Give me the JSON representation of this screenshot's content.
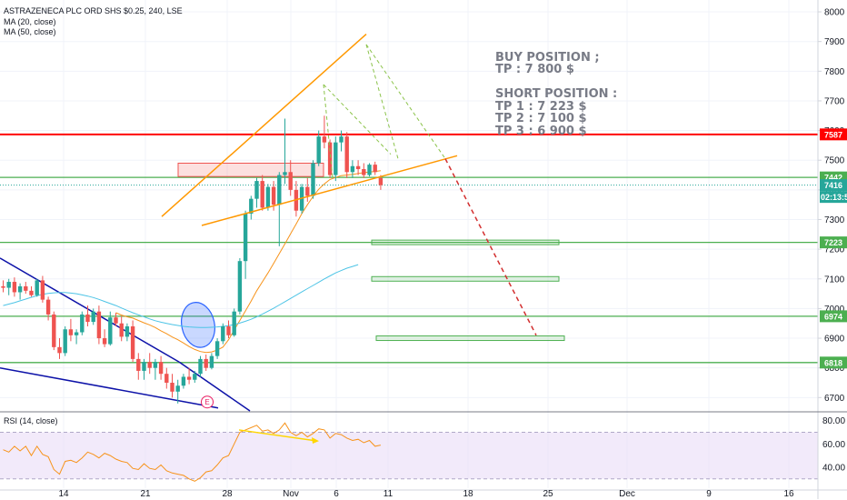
{
  "header": {
    "symbol": "ASTRAZENECA PLC ORD SHS $0.25, 240, LSE",
    "ma20": "MA (20, close)",
    "ma50": "MA (50, close)",
    "rsi": "RSI (14, close)"
  },
  "annotation": {
    "buy_title": "BUY POSITION ;",
    "buy_tp": "TP : 7 800 $",
    "short_title": "SHORT POSITION :",
    "tp1": "TP 1 : 7 223 $",
    "tp2": "TP 2 : 7 100 $",
    "tp3": "TP 3 : 6 900 $"
  },
  "earnings_marker": "E",
  "colors": {
    "up": "#26a69a",
    "down": "#ef5350",
    "resistance": "#ff0000",
    "support": "#4caf50",
    "wedge": "#ff9800",
    "trendline": "#0d12a8",
    "ma20": "#f7931a",
    "ma50": "#4dc4e6",
    "rsi": "#f7931a",
    "rsi_band": "#e9dcf7",
    "price_line": "#4caf50",
    "projection": "#d32f2f"
  },
  "chart_data": [
    {
      "type": "candlestick",
      "title": "ASTRAZENECA PLC ORD SHS $0.25, 240, LSE",
      "price_axis": {
        "ylim": [
          6655,
          8040
        ],
        "ticks": [
          6700,
          6800,
          6900,
          7000,
          7100,
          7200,
          7300,
          7400,
          7500,
          7600,
          7700,
          7800,
          7900,
          8000
        ]
      },
      "time_axis": {
        "labels": [
          "14",
          "21",
          "28",
          "Nov",
          "6",
          "11",
          "18",
          "25",
          "Dec",
          "9",
          "16"
        ]
      },
      "candles": [
        {
          "o": 7075,
          "h": 7095,
          "l": 7055,
          "c": 7070
        },
        {
          "o": 7070,
          "h": 7100,
          "l": 7045,
          "c": 7090
        },
        {
          "o": 7090,
          "h": 7105,
          "l": 7040,
          "c": 7055
        },
        {
          "o": 7055,
          "h": 7085,
          "l": 7030,
          "c": 7075
        },
        {
          "o": 7075,
          "h": 7090,
          "l": 7050,
          "c": 7060
        },
        {
          "o": 7060,
          "h": 7075,
          "l": 7040,
          "c": 7045
        },
        {
          "o": 7045,
          "h": 7100,
          "l": 7040,
          "c": 7095
        },
        {
          "o": 7095,
          "h": 7110,
          "l": 7020,
          "c": 7030
        },
        {
          "o": 7030,
          "h": 7040,
          "l": 6960,
          "c": 6980
        },
        {
          "o": 6980,
          "h": 6990,
          "l": 6860,
          "c": 6870
        },
        {
          "o": 6870,
          "h": 6900,
          "l": 6830,
          "c": 6850
        },
        {
          "o": 6850,
          "h": 6940,
          "l": 6840,
          "c": 6930
        },
        {
          "o": 6930,
          "h": 6965,
          "l": 6890,
          "c": 6910
        },
        {
          "o": 6910,
          "h": 6930,
          "l": 6880,
          "c": 6920
        },
        {
          "o": 6920,
          "h": 6990,
          "l": 6910,
          "c": 6980
        },
        {
          "o": 6980,
          "h": 7010,
          "l": 6940,
          "c": 6955
        },
        {
          "o": 6955,
          "h": 7000,
          "l": 6945,
          "c": 6990
        },
        {
          "o": 6990,
          "h": 7010,
          "l": 6880,
          "c": 6900
        },
        {
          "o": 6900,
          "h": 6930,
          "l": 6870,
          "c": 6880
        },
        {
          "o": 6880,
          "h": 6990,
          "l": 6875,
          "c": 6970
        },
        {
          "o": 6970,
          "h": 6985,
          "l": 6940,
          "c": 6950
        },
        {
          "o": 6950,
          "h": 6975,
          "l": 6890,
          "c": 6905
        },
        {
          "o": 6905,
          "h": 6950,
          "l": 6890,
          "c": 6940
        },
        {
          "o": 6940,
          "h": 6960,
          "l": 6820,
          "c": 6830
        },
        {
          "o": 6830,
          "h": 6850,
          "l": 6760,
          "c": 6790
        },
        {
          "o": 6790,
          "h": 6830,
          "l": 6760,
          "c": 6820
        },
        {
          "o": 6820,
          "h": 6850,
          "l": 6780,
          "c": 6800
        },
        {
          "o": 6800,
          "h": 6830,
          "l": 6760,
          "c": 6820
        },
        {
          "o": 6820,
          "h": 6840,
          "l": 6760,
          "c": 6780
        },
        {
          "o": 6780,
          "h": 6800,
          "l": 6730,
          "c": 6750
        },
        {
          "o": 6750,
          "h": 6780,
          "l": 6700,
          "c": 6720
        },
        {
          "o": 6720,
          "h": 6760,
          "l": 6680,
          "c": 6740
        },
        {
          "o": 6740,
          "h": 6780,
          "l": 6730,
          "c": 6770
        },
        {
          "o": 6770,
          "h": 6800,
          "l": 6745,
          "c": 6760
        },
        {
          "o": 6760,
          "h": 6790,
          "l": 6750,
          "c": 6780
        },
        {
          "o": 6780,
          "h": 6840,
          "l": 6770,
          "c": 6830
        },
        {
          "o": 6830,
          "h": 6845,
          "l": 6790,
          "c": 6800
        },
        {
          "o": 6800,
          "h": 6850,
          "l": 6795,
          "c": 6840
        },
        {
          "o": 6840,
          "h": 6900,
          "l": 6830,
          "c": 6890
        },
        {
          "o": 6890,
          "h": 6950,
          "l": 6880,
          "c": 6940
        },
        {
          "o": 6940,
          "h": 6960,
          "l": 6900,
          "c": 6910
        },
        {
          "o": 6910,
          "h": 7000,
          "l": 6905,
          "c": 6990
        },
        {
          "o": 6990,
          "h": 7170,
          "l": 6980,
          "c": 7160
        },
        {
          "o": 7160,
          "h": 7330,
          "l": 7100,
          "c": 7320
        },
        {
          "o": 7320,
          "h": 7380,
          "l": 7300,
          "c": 7370
        },
        {
          "o": 7370,
          "h": 7440,
          "l": 7340,
          "c": 7430
        },
        {
          "o": 7430,
          "h": 7450,
          "l": 7330,
          "c": 7340
        },
        {
          "o": 7340,
          "h": 7420,
          "l": 7330,
          "c": 7410
        },
        {
          "o": 7410,
          "h": 7430,
          "l": 7330,
          "c": 7350
        },
        {
          "o": 7350,
          "h": 7460,
          "l": 7210,
          "c": 7450
        },
        {
          "o": 7450,
          "h": 7640,
          "l": 7420,
          "c": 7460
        },
        {
          "o": 7460,
          "h": 7500,
          "l": 7380,
          "c": 7400
        },
        {
          "o": 7400,
          "h": 7430,
          "l": 7310,
          "c": 7330
        },
        {
          "o": 7330,
          "h": 7420,
          "l": 7320,
          "c": 7410
        },
        {
          "o": 7410,
          "h": 7440,
          "l": 7360,
          "c": 7380
        },
        {
          "o": 7380,
          "h": 7500,
          "l": 7370,
          "c": 7490
        },
        {
          "o": 7490,
          "h": 7600,
          "l": 7480,
          "c": 7580
        },
        {
          "o": 7580,
          "h": 7650,
          "l": 7540,
          "c": 7560
        },
        {
          "o": 7560,
          "h": 7570,
          "l": 7440,
          "c": 7450
        },
        {
          "o": 7450,
          "h": 7580,
          "l": 7430,
          "c": 7560
        },
        {
          "o": 7560,
          "h": 7600,
          "l": 7530,
          "c": 7580
        },
        {
          "o": 7580,
          "h": 7595,
          "l": 7440,
          "c": 7460
        },
        {
          "o": 7460,
          "h": 7500,
          "l": 7440,
          "c": 7480
        },
        {
          "o": 7480,
          "h": 7500,
          "l": 7450,
          "c": 7470
        },
        {
          "o": 7470,
          "h": 7490,
          "l": 7440,
          "c": 7450
        },
        {
          "o": 7450,
          "h": 7490,
          "l": 7445,
          "c": 7485
        },
        {
          "o": 7485,
          "h": 7495,
          "l": 7450,
          "c": 7460
        },
        {
          "o": 7440,
          "h": 7450,
          "l": 7400,
          "c": 7416
        }
      ],
      "moving_averages": [
        {
          "name": "MA (20, close)",
          "color": "#f7931a",
          "first_bar": 20,
          "values": [
            6986,
            6978,
            6972,
            6968,
            6960,
            6952,
            6945,
            6936,
            6925,
            6915,
            6904,
            6895,
            6884,
            6872,
            6862,
            6855,
            6852,
            6854,
            6860,
            6870,
            6895,
            6928,
            6960,
            6992,
            7025,
            7060,
            7090,
            7120,
            7152,
            7185,
            7218,
            7252,
            7285,
            7320,
            7350,
            7378,
            7402,
            7420,
            7435,
            7442,
            7448,
            7450,
            7452,
            7455,
            7458,
            7460,
            7462,
            7465
          ]
        },
        {
          "name": "MA (50, close)",
          "color": "#4dc4e6",
          "first_bar": 0,
          "values": [
            7010,
            7015,
            7020,
            7026,
            7032,
            7038,
            7043,
            7048,
            7051,
            7053,
            7054,
            7054,
            7052,
            7050,
            7046,
            7042,
            7037,
            7031,
            7024,
            7017,
            7010,
            7002,
            6994,
            6986,
            6979,
            6972,
            6965,
            6959,
            6954,
            6950,
            6946,
            6943,
            6940,
            6938,
            6937,
            6936,
            6936,
            6937,
            6938,
            6940,
            6942,
            6946,
            6951,
            6957,
            6964,
            6972,
            6981,
            6991,
            7001,
            7012,
            7023,
            7034,
            7045,
            7056,
            7067,
            7078,
            7089,
            7100,
            7110,
            7120,
            7128,
            7136,
            7142,
            7148
          ]
        }
      ],
      "horizontal_levels": [
        {
          "price": 7587,
          "label": "7587",
          "color": "#ff0000"
        },
        {
          "price": 7442,
          "label": "7442",
          "color": "#4caf50"
        },
        {
          "price": 7223,
          "label": "7223",
          "color": "#4caf50"
        },
        {
          "price": 6974,
          "label": "6974",
          "color": "#4caf50"
        },
        {
          "price": 6818,
          "label": "6818",
          "color": "#4caf50"
        }
      ],
      "last_price": {
        "price": 7416,
        "label": "7416",
        "countdown": "02:13:5"
      },
      "target_zones": [
        7223,
        7100,
        6900
      ]
    },
    {
      "type": "line",
      "title": "RSI (14, close)",
      "ylim": [
        22,
        86
      ],
      "ticks": [
        40,
        60,
        80
      ],
      "tick_labels": [
        "40.00",
        "60.00",
        "80.00"
      ],
      "band": [
        30,
        70
      ],
      "values": [
        55,
        53,
        58,
        54,
        58,
        50,
        58,
        51,
        49,
        38,
        34,
        45,
        46,
        44,
        48,
        53,
        51,
        48,
        52,
        50,
        47,
        45,
        44,
        39,
        38,
        43,
        39,
        38,
        42,
        37,
        35,
        34,
        33,
        30,
        28,
        31,
        36,
        37,
        42,
        48,
        50,
        60,
        70,
        72,
        74,
        76,
        71,
        72,
        69,
        72,
        78,
        70,
        67,
        70,
        66,
        69,
        73,
        72,
        65,
        69,
        68,
        65,
        63,
        64,
        61,
        63,
        58,
        59
      ]
    }
  ]
}
